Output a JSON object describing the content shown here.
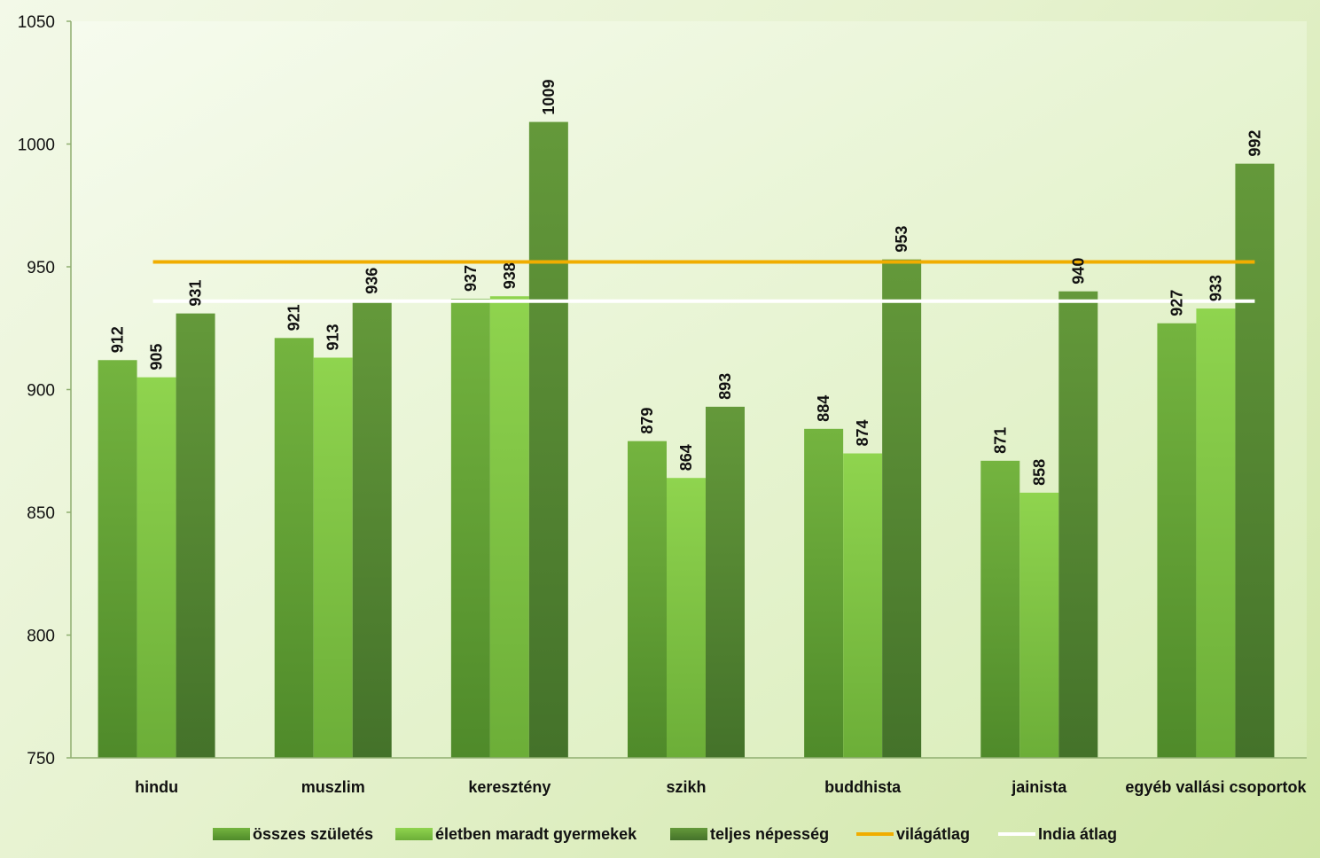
{
  "chart_data": {
    "type": "bar",
    "categories": [
      "hindu",
      "muszlim",
      "keresztény",
      "szikh",
      "buddhista",
      "jainista",
      "egyéb vallási csoportok"
    ],
    "series": [
      {
        "name": "összes születés",
        "values": [
          912,
          921,
          937,
          879,
          884,
          871,
          927
        ],
        "color": "#6aaa3a"
      },
      {
        "name": "életben maradt gyermekek",
        "values": [
          905,
          913,
          938,
          864,
          874,
          858,
          933
        ],
        "color": "#86cc4a"
      },
      {
        "name": "teljes népesség",
        "values": [
          931,
          936,
          1009,
          893,
          953,
          940,
          992
        ],
        "color": "#58892f"
      }
    ],
    "reference_lines": [
      {
        "name": "világátlag",
        "value": 952,
        "color": "#f0ad00"
      },
      {
        "name": "India átlag",
        "value": 936,
        "color": "#ffffff"
      }
    ],
    "ylim": [
      750,
      1050
    ],
    "yticks": [
      750,
      800,
      850,
      900,
      950,
      1000,
      1050
    ],
    "data_labels": true,
    "grid": false,
    "legend_position": "bottom"
  }
}
